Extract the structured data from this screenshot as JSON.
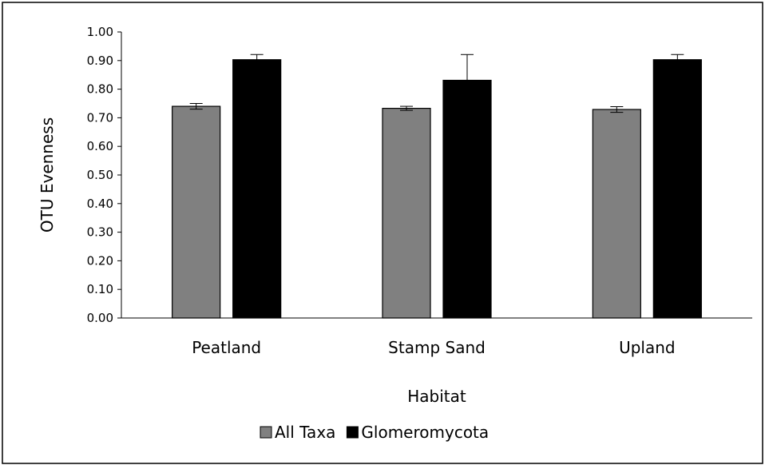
{
  "chart_data": {
    "type": "bar",
    "title": "",
    "xlabel": "Habitat",
    "ylabel": "OTU Evenness",
    "ylim": [
      0,
      1.0
    ],
    "yticks": [
      "0.00",
      "0.10",
      "0.20",
      "0.30",
      "0.40",
      "0.50",
      "0.60",
      "0.70",
      "0.80",
      "0.90",
      "1.00"
    ],
    "grid": false,
    "legend_position": "bottom",
    "categories": [
      "Peatland",
      "Stamp Sand",
      "Upland"
    ],
    "series": [
      {
        "name": "All Taxa",
        "color": "#808080",
        "values": [
          0.74,
          0.733,
          0.729
        ],
        "errors": [
          0.01,
          0.007,
          0.01
        ]
      },
      {
        "name": "Glomeromycota",
        "color": "#000000",
        "values": [
          0.903,
          0.831,
          0.903
        ],
        "errors": [
          0.018,
          0.09,
          0.018
        ]
      }
    ]
  }
}
